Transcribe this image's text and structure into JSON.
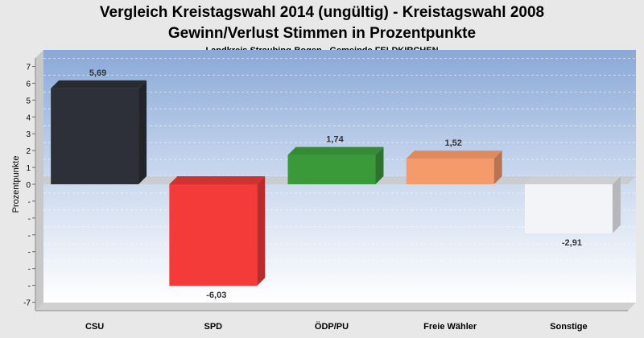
{
  "chart_data": {
    "type": "bar",
    "title": "Vergleich Kreistagswahl 2014 (ungültig) - Kreistagswahl 2008",
    "title_line2": "Gewinn/Verlust Stimmen in Prozentpunkte",
    "subtitle": "Landkreis Straubing-Bogen - Gemeinde FELDKIRCHEN",
    "xlabel": "",
    "ylabel": "Prozentpunkte",
    "ylim": [
      -7.5,
      7.5
    ],
    "yticks": [
      7,
      6,
      5,
      4,
      3,
      2,
      1,
      0,
      -1,
      -2,
      -3,
      -4,
      -5,
      -6,
      -7
    ],
    "ytick_labels": [
      "7",
      "6",
      "5",
      "4",
      "3",
      "2",
      "1",
      "0",
      "-",
      "-",
      "-",
      "-",
      "-",
      "-",
      "-7"
    ],
    "categories": [
      "CSU",
      "SPD",
      "ÖDP/PU",
      "Freie Wähler",
      "Sonstige"
    ],
    "values": [
      5.69,
      -6.03,
      1.74,
      1.52,
      -2.91
    ],
    "value_labels": [
      "5,69",
      "-6,03",
      "1,74",
      "1,52",
      "-2,91"
    ],
    "colors": [
      "#2d3038",
      "#f53a3a",
      "#3a9a3a",
      "#f59a6a",
      "#f2f4f8"
    ],
    "grid": true,
    "legend": "none"
  }
}
